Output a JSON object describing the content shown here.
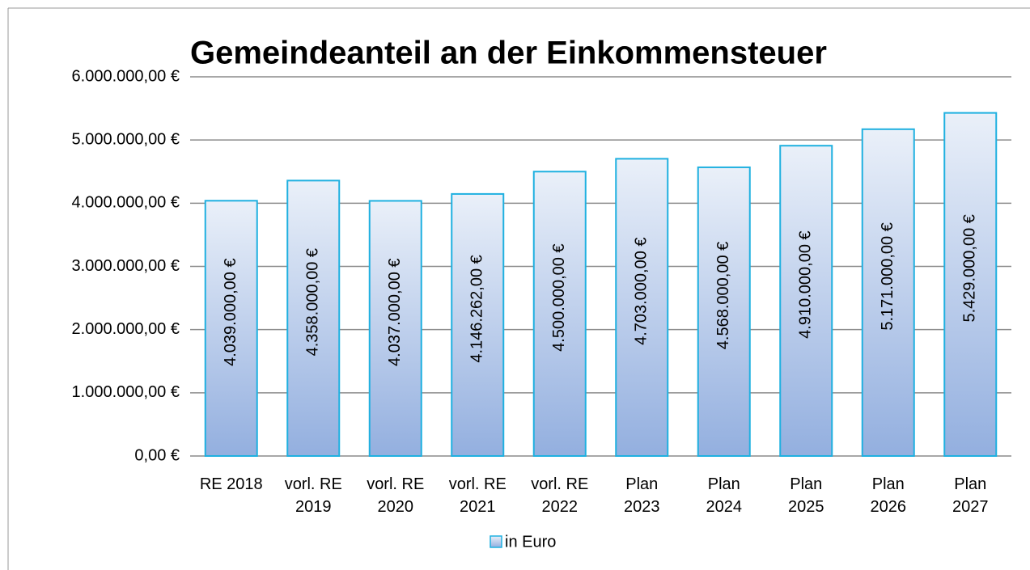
{
  "chart_data": {
    "type": "bar",
    "title": "Gemeindeanteil an der Einkommensteuer",
    "categories": [
      "RE 2018",
      "vorl. RE 2019",
      "vorl. RE 2020",
      "vorl. RE 2021",
      "vorl. RE 2022",
      "Plan 2023",
      "Plan 2024",
      "Plan 2025",
      "Plan 2026",
      "Plan 2027"
    ],
    "series": [
      {
        "name": "in Euro",
        "color": "#1fb0e0",
        "values": [
          4039000,
          4358000,
          4037000,
          4146262,
          4500000,
          4703000,
          4568000,
          4910000,
          5171000,
          5429000
        ],
        "value_labels": [
          "4.039.000,00 €",
          "4.358.000,00 €",
          "4.037.000,00 €",
          "4.146.262,00 €",
          "4.500.000,00 €",
          "4.703.000,00 €",
          "4.568.000,00 €",
          "4.910.000,00 €",
          "5.171.000,00 €",
          "5.429.000,00 €"
        ]
      }
    ],
    "ylim": [
      0,
      6000000
    ],
    "yticks": [
      {
        "value": 0,
        "label": "0,00 €"
      },
      {
        "value": 1000000,
        "label": "1.000.000,00 €"
      },
      {
        "value": 2000000,
        "label": "2.000.000,00 €"
      },
      {
        "value": 3000000,
        "label": "3.000.000,00 €"
      },
      {
        "value": 4000000,
        "label": "4.000.000,00 €"
      },
      {
        "value": 5000000,
        "label": "5.000.000,00 €"
      },
      {
        "value": 6000000,
        "label": "6.000.000,00 €"
      }
    ],
    "grid": true,
    "legend": "bottom"
  }
}
